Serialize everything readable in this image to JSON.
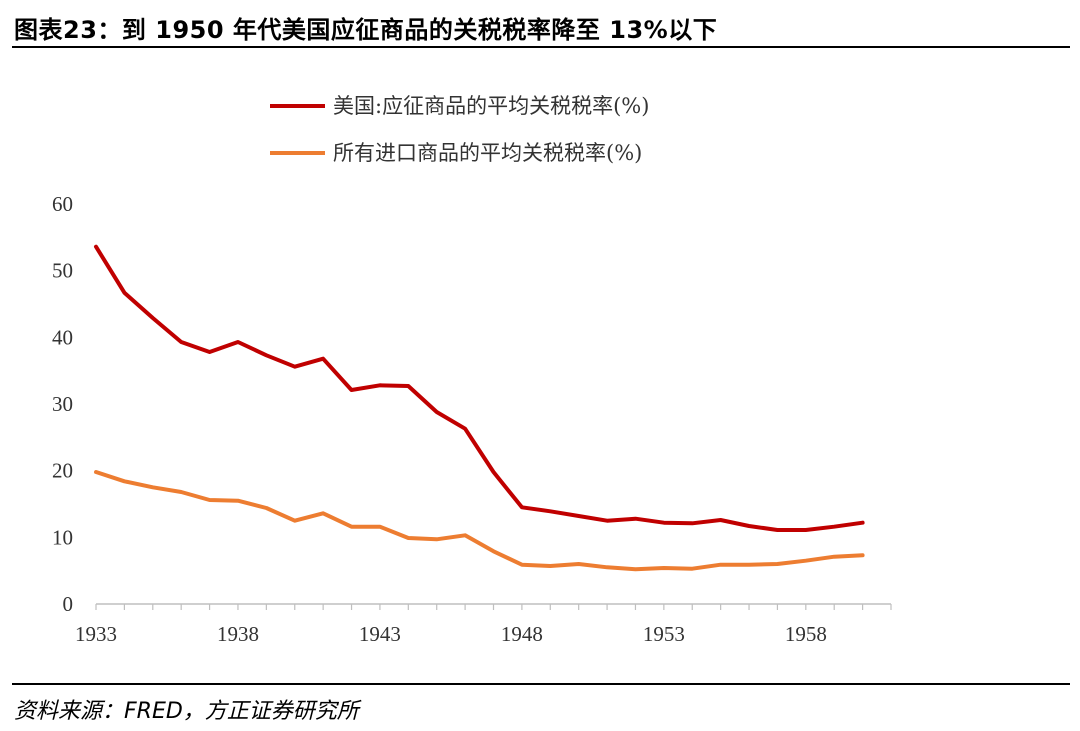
{
  "header": {
    "title": "图表23：到 1950 年代美国应征商品的关税税率降至 13%以下"
  },
  "footer": {
    "source": "资料来源：FRED，方正证券研究所"
  },
  "chart_data": {
    "type": "line",
    "title": "",
    "xlabel": "",
    "ylabel": "",
    "xlim": [
      1933,
      1961
    ],
    "ylim": [
      0,
      60
    ],
    "yticks": [
      0,
      10,
      20,
      30,
      40,
      50,
      60
    ],
    "xticks": [
      1933,
      1938,
      1943,
      1948,
      1953,
      1958
    ],
    "grid": false,
    "legend_position": "top-center",
    "x": [
      1933,
      1934,
      1935,
      1936,
      1937,
      1938,
      1939,
      1940,
      1941,
      1942,
      1943,
      1944,
      1945,
      1946,
      1947,
      1948,
      1949,
      1950,
      1951,
      1952,
      1953,
      1954,
      1955,
      1956,
      1957,
      1958,
      1959,
      1960
    ],
    "series": [
      {
        "name": "美国:应征商品的平均关税税率(%)",
        "color": "#c00000",
        "values": [
          53.6,
          46.7,
          42.9,
          39.3,
          37.8,
          39.3,
          37.3,
          35.6,
          36.8,
          32.1,
          32.8,
          32.7,
          28.8,
          26.3,
          19.8,
          14.5,
          13.9,
          13.2,
          12.5,
          12.8,
          12.2,
          12.1,
          12.6,
          11.7,
          11.1,
          11.1,
          11.6,
          12.2
        ]
      },
      {
        "name": "所有进口商品的平均关税税率(%)",
        "color": "#ed7d31",
        "values": [
          19.8,
          18.4,
          17.5,
          16.8,
          15.6,
          15.5,
          14.4,
          12.5,
          13.6,
          11.6,
          11.6,
          9.9,
          9.7,
          10.3,
          7.9,
          5.9,
          5.7,
          6.0,
          5.5,
          5.2,
          5.4,
          5.3,
          5.9,
          5.9,
          6.0,
          6.5,
          7.1,
          7.3
        ]
      }
    ]
  }
}
